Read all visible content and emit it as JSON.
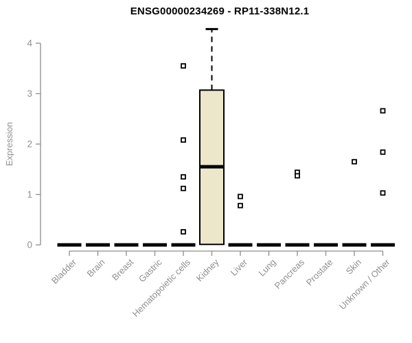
{
  "chart_data": {
    "type": "boxplot",
    "title": "ENSG00000234269 - RP11-338N12.1",
    "ylabel": "Expression",
    "xlabel": "",
    "ylim": [
      0,
      4.3
    ],
    "yticks": [
      0,
      1,
      2,
      3,
      4
    ],
    "grid": false,
    "legend": "none",
    "categories": [
      "Bladder",
      "Brain",
      "Breast",
      "Gastric",
      "Hematopoietic cells",
      "Kidney",
      "Liver",
      "Lung",
      "Pancreas",
      "Prostate",
      "Skin",
      "Unknown / Other"
    ],
    "boxes": [
      {
        "category": "Bladder",
        "whisker_low": 0,
        "q1": 0,
        "median": 0,
        "q3": 0,
        "whisker_high": 0
      },
      {
        "category": "Brain",
        "whisker_low": 0,
        "q1": 0,
        "median": 0,
        "q3": 0,
        "whisker_high": 0
      },
      {
        "category": "Breast",
        "whisker_low": 0,
        "q1": 0,
        "median": 0,
        "q3": 0,
        "whisker_high": 0
      },
      {
        "category": "Gastric",
        "whisker_low": 0,
        "q1": 0,
        "median": 0,
        "q3": 0,
        "whisker_high": 0
      },
      {
        "category": "Hematopoietic cells",
        "whisker_low": 0,
        "q1": 0,
        "median": 0,
        "q3": 0,
        "whisker_high": 0
      },
      {
        "category": "Kidney",
        "whisker_low": 0,
        "q1": 0.01,
        "median": 1.55,
        "q3": 3.07,
        "whisker_high": 4.28
      },
      {
        "category": "Liver",
        "whisker_low": 0,
        "q1": 0,
        "median": 0,
        "q3": 0,
        "whisker_high": 0
      },
      {
        "category": "Lung",
        "whisker_low": 0,
        "q1": 0,
        "median": 0,
        "q3": 0,
        "whisker_high": 0
      },
      {
        "category": "Pancreas",
        "whisker_low": 0,
        "q1": 0,
        "median": 0,
        "q3": 0,
        "whisker_high": 0
      },
      {
        "category": "Prostate",
        "whisker_low": 0,
        "q1": 0,
        "median": 0,
        "q3": 0,
        "whisker_high": 0
      },
      {
        "category": "Skin",
        "whisker_low": 0,
        "q1": 0,
        "median": 0,
        "q3": 0,
        "whisker_high": 0
      },
      {
        "category": "Unknown / Other",
        "whisker_low": 0,
        "q1": 0,
        "median": 0,
        "q3": 0,
        "whisker_high": 0
      }
    ],
    "outliers": {
      "Hematopoietic cells": [
        3.55,
        2.08,
        1.35,
        1.12,
        0.26
      ],
      "Liver": [
        0.96,
        0.78
      ],
      "Pancreas": [
        1.44,
        1.37
      ],
      "Skin": [
        1.65
      ],
      "Unknown / Other": [
        2.66,
        1.84,
        1.03
      ]
    },
    "colors": {
      "background": "#ffffff",
      "box_fill": "#ece7cb",
      "box_border": "#000000",
      "median": "#000000",
      "whisker": "#000000",
      "outlier_stroke": "#000000",
      "outlier_fill": "#ffffff",
      "axis": "#8c8c8c",
      "tick_text": "#8f8f8f",
      "title": "#000000"
    }
  }
}
